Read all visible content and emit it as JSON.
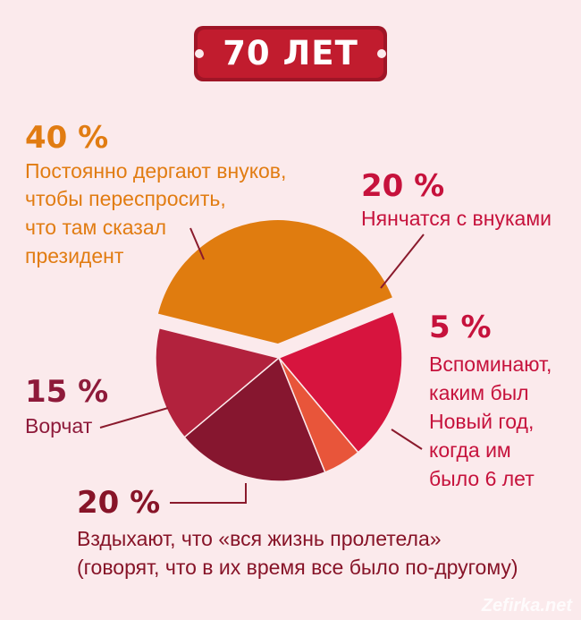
{
  "title": "70 ЛЕТ",
  "watermark": "Zefirka.net",
  "colors": {
    "background": "#fbeaec",
    "badge": "#c11c2e",
    "leader": "#8a1a2c"
  },
  "chart_data": {
    "type": "pie",
    "title": "70 ЛЕТ",
    "slices": [
      {
        "value": 40,
        "percent_label": "40 %",
        "lines": [
          "Постоянно дергают внуков,",
          "чтобы переспросить,",
          "что там сказал",
          "президент"
        ],
        "color": "#e07c0f"
      },
      {
        "value": 20,
        "percent_label": "20 %",
        "lines": [
          "Нянчатся с внуками"
        ],
        "color": "#d7143e"
      },
      {
        "value": 5,
        "percent_label": "5 %",
        "lines": [
          "Вспоминают,",
          "каким был",
          "Новый год,",
          "когда им",
          "было 6 лет"
        ],
        "color": "#e8553a"
      },
      {
        "value": 20,
        "percent_label": "20 %",
        "lines": [
          "Вздыхают, что «вся жизнь пролетела»",
          "(говорят, что в их время все было по-другому)"
        ],
        "color": "#86162f"
      },
      {
        "value": 15,
        "percent_label": "15 %",
        "lines": [
          "Ворчат"
        ],
        "color": "#b2223d"
      }
    ]
  }
}
